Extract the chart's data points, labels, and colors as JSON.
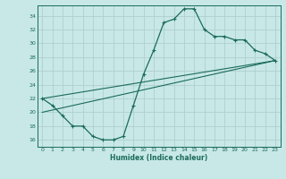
{
  "xlabel": "Humidex (Indice chaleur)",
  "background_color": "#c8e8e8",
  "line_color": "#1a6b5a",
  "grid_color": "#b0d0d0",
  "xlim": [
    -0.5,
    23.5
  ],
  "ylim": [
    15.0,
    35.5
  ],
  "yticks": [
    16,
    18,
    20,
    22,
    24,
    26,
    28,
    30,
    32,
    34
  ],
  "xticks": [
    0,
    1,
    2,
    3,
    4,
    5,
    6,
    7,
    8,
    9,
    10,
    11,
    12,
    13,
    14,
    15,
    16,
    17,
    18,
    19,
    20,
    21,
    22,
    23
  ],
  "curve_x": [
    0,
    1,
    2,
    3,
    4,
    5,
    6,
    7,
    8,
    9,
    10,
    11,
    12,
    13,
    14,
    15,
    16,
    17,
    18,
    19,
    20,
    21,
    22,
    23
  ],
  "curve_y": [
    22.0,
    21.0,
    19.5,
    18.0,
    18.0,
    16.5,
    16.0,
    16.0,
    16.5,
    21.0,
    25.5,
    29.0,
    33.0,
    33.5,
    35.0,
    35.0,
    32.0,
    31.0,
    31.0,
    30.5,
    30.5,
    29.0,
    28.5,
    27.5
  ],
  "line1_x": [
    0,
    23
  ],
  "line1_y": [
    22.0,
    27.5
  ],
  "line2_x": [
    0,
    23
  ],
  "line2_y": [
    20.0,
    27.5
  ]
}
